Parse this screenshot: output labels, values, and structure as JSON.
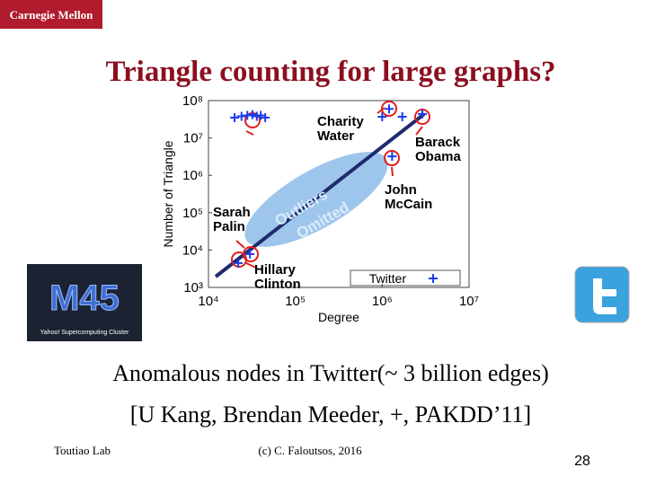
{
  "header": {
    "logo": "Carnegie Mellon",
    "title": "Triangle counting for large graphs?"
  },
  "chart": {
    "type": "scatter",
    "xlabel": "Degree",
    "ylabel": "Number of Triangle",
    "log_scale": true,
    "xlim": [
      10000,
      10000000
    ],
    "ylim": [
      1000,
      100000000
    ],
    "xticks": [
      {
        "value": 10000,
        "label": "10⁴"
      },
      {
        "value": 100000,
        "label": "10⁵"
      },
      {
        "value": 1000000,
        "label": "10⁶"
      },
      {
        "value": 10000000,
        "label": "10⁷"
      }
    ],
    "yticks": [
      {
        "value": 1000,
        "label": "10³"
      },
      {
        "value": 10000,
        "label": "10⁴"
      },
      {
        "value": 100000,
        "label": "10⁵"
      },
      {
        "value": 1000000,
        "label": "10⁶"
      },
      {
        "value": 10000000,
        "label": "10⁷"
      },
      {
        "value": 100000000,
        "label": "10⁸"
      }
    ],
    "legend": "bottom-right",
    "series": [
      {
        "name": "Twitter",
        "color": "#1a3cf0",
        "x": [
          20000,
          24000,
          28000,
          32000,
          36000,
          40000,
          45000,
          1200000,
          1000000,
          1700000,
          2900000,
          1300000,
          30000,
          22000
        ],
        "y": [
          35000000,
          38000000,
          40000000,
          42000000,
          38000000,
          40000000,
          35000000,
          60000000,
          37000000,
          37000000,
          44000000,
          3200000,
          7800,
          4500
        ]
      }
    ],
    "annotations": [
      [
        "Charity",
        "Water"
      ],
      [
        "Barack",
        "Obama"
      ],
      [
        "John",
        "McCain"
      ],
      [
        "Sarah",
        "Palin"
      ],
      [
        "Hillary",
        "Clinton"
      ],
      [
        "Outliers",
        "Omitted"
      ]
    ]
  },
  "images": {
    "m45": "M45",
    "m45_caption": "Yahoo! Supercomputing Cluster"
  },
  "caption": [
    "Anomalous nodes in Twitter(~ 3 billion edges)",
    "[U Kang, Brendan Meeder, +, PAKDD’11]"
  ],
  "footer": {
    "left": "Toutiao Lab",
    "center": "(c) C. Faloutsos, 2016",
    "page": "28"
  }
}
